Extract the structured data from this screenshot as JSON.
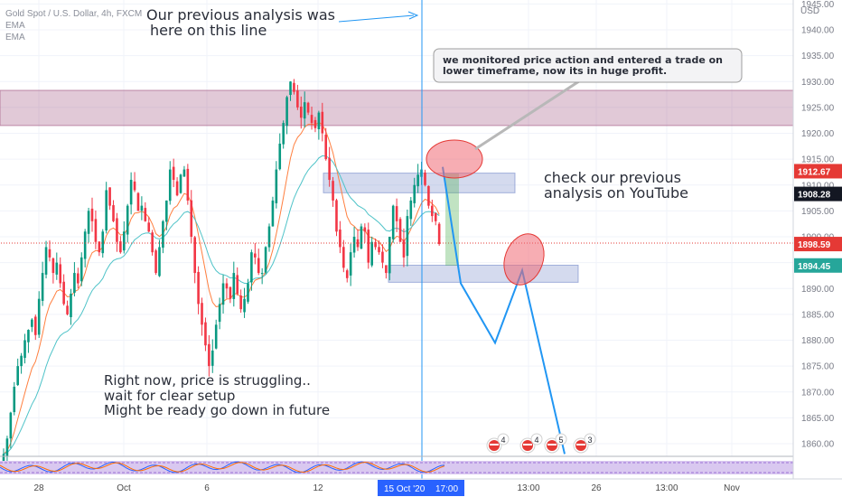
{
  "legend": {
    "symbol": "Gold Spot / U.S. Dollar, 4h, FXCM",
    "ema1": "EMA",
    "ema2": "EMA"
  },
  "currency": "USD",
  "annotations": {
    "previous_analysis": [
      "Our previous analysis was",
      "here on this line"
    ],
    "callout": [
      "we monitored price action and entered a trade on",
      "lower timeframe, now its in huge profit."
    ],
    "youtube": [
      "check our previous",
      "analysis on YouTube"
    ],
    "struggling": [
      "Right now, price is struggling..",
      "wait for clear setup",
      "Might be ready go down in future"
    ]
  },
  "price_tags": [
    {
      "value": "1912.67",
      "color": "#e53935"
    },
    {
      "value": "1908.28",
      "color": "#131722"
    },
    {
      "value": "1898.59",
      "color": "#e53935"
    },
    {
      "value": "1894.45",
      "color": "#26a69a"
    }
  ],
  "event_badges": [
    "4",
    "4",
    "5",
    "3"
  ],
  "x_labels": [
    "28",
    "Oct",
    "6",
    "12",
    "13:00",
    "26",
    "13:00",
    "Nov"
  ],
  "x_highlight": [
    "15 Oct '20",
    "17:00"
  ],
  "chart_data": {
    "type": "candlestick",
    "symbol": "XAUUSD",
    "timeframe": "4h",
    "ylim": [
      1857,
      1945
    ],
    "y_ticks": [
      1860,
      1865,
      1870,
      1875,
      1880,
      1885,
      1890,
      1895,
      1900,
      1905,
      1910,
      1915,
      1920,
      1925,
      1930,
      1935,
      1940,
      1945
    ],
    "current_price": 1898.59,
    "zones": [
      {
        "from": 1921.5,
        "to": 1928.3,
        "color": "#9c4d7a"
      },
      {
        "from": 1908.5,
        "to": 1912.3,
        "color": "#6f86c8"
      },
      {
        "from": 1891.2,
        "to": 1894.5,
        "color": "#6f86c8"
      }
    ],
    "projection_path": [
      1913.5,
      1891.0,
      1879.5,
      1893.5,
      1858.0
    ],
    "closes": [
      1858,
      1861,
      1866,
      1871,
      1875,
      1877,
      1880,
      1882,
      1884,
      1881,
      1888,
      1893,
      1898,
      1896,
      1893,
      1895,
      1891,
      1887,
      1885,
      1889,
      1893,
      1891,
      1896,
      1901,
      1905,
      1903,
      1899,
      1897,
      1901,
      1909,
      1906,
      1903,
      1899,
      1897,
      1901,
      1906,
      1911,
      1909,
      1905,
      1906,
      1903,
      1901,
      1897,
      1893,
      1898,
      1903,
      1907,
      1913,
      1911,
      1908,
      1912,
      1913,
      1907,
      1900,
      1893,
      1887,
      1883,
      1879,
      1875,
      1878,
      1883,
      1887,
      1891,
      1890,
      1888,
      1893,
      1889,
      1886,
      1888,
      1891,
      1897,
      1896,
      1893,
      1893,
      1898,
      1902,
      1907,
      1913,
      1918,
      1922,
      1927,
      1930,
      1928,
      1925,
      1923,
      1926,
      1924,
      1922,
      1921,
      1924,
      1920,
      1915,
      1911,
      1907,
      1901,
      1898,
      1894,
      1892,
      1897,
      1900,
      1898,
      1902,
      1901,
      1895,
      1899,
      1898,
      1897,
      1895,
      1893,
      1900,
      1906,
      1903,
      1899,
      1896,
      1904,
      1907,
      1910,
      1912,
      1913,
      1910,
      1906,
      1904,
      1903,
      1898.59
    ]
  }
}
